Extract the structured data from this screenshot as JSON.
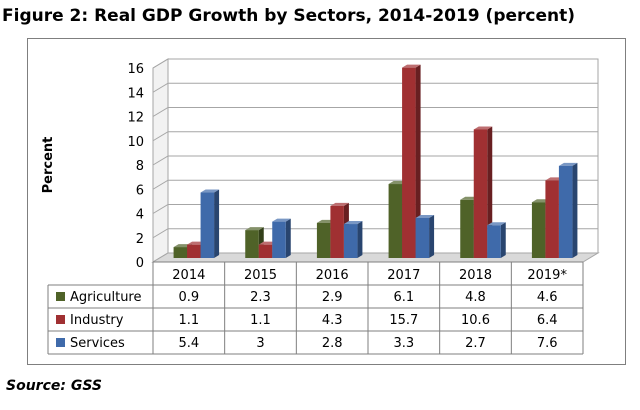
{
  "figure": {
    "title": "Figure 2: Real GDP Growth by Sectors, 2014-2019 (percent)",
    "source": "Source: GSS"
  },
  "chart_data": {
    "type": "bar",
    "title": "Figure 2: Real GDP Growth by Sectors, 2014-2019 (percent)",
    "xlabel": "",
    "ylabel": "Percent",
    "ylim": [
      0,
      16
    ],
    "yticks": [
      "0",
      "2",
      "4",
      "6",
      "8",
      "10",
      "12",
      "14",
      "16"
    ],
    "grid": true,
    "legend": "bottom (data table)",
    "categories": [
      "2014",
      "2015",
      "2016",
      "2017",
      "2018",
      "2019*"
    ],
    "series": [
      {
        "name": "Agriculture",
        "color": "#4f6228",
        "values": [
          0.9,
          2.3,
          2.9,
          6.1,
          4.8,
          4.6
        ]
      },
      {
        "name": "Industry",
        "color": "#a03032",
        "values": [
          1.1,
          1.1,
          4.3,
          15.7,
          10.6,
          6.4
        ]
      },
      {
        "name": "Services",
        "color": "#3f6aaa",
        "values": [
          5.4,
          3,
          2.8,
          3.3,
          2.7,
          7.6
        ]
      }
    ]
  }
}
